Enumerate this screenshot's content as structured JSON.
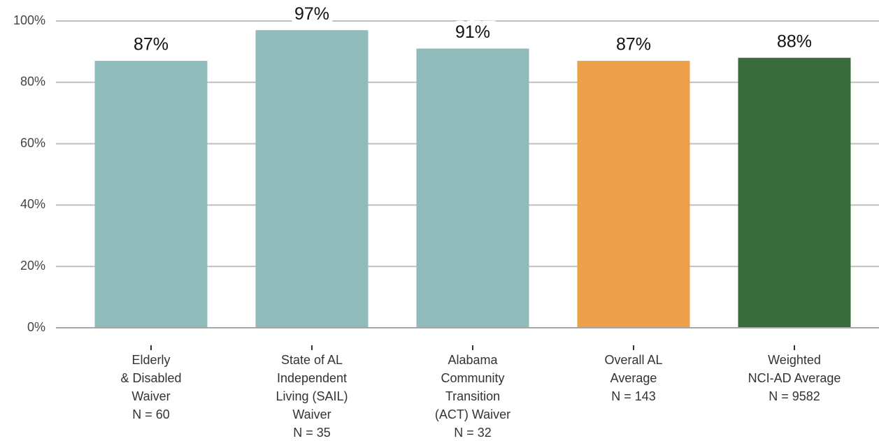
{
  "chart_data": {
    "type": "bar",
    "categories": [
      [
        "Elderly",
        "& Disabled",
        "Waiver",
        "N = 60"
      ],
      [
        "State of AL",
        "Independent",
        "Living (SAIL)",
        "Waiver",
        "N = 35"
      ],
      [
        "Alabama",
        "Community",
        "Transition",
        "(ACT) Waiver",
        "N = 32"
      ],
      [
        "Overall AL",
        "Average",
        "N = 143"
      ],
      [
        "Weighted",
        "NCI-AD Average",
        "N = 9582"
      ]
    ],
    "values": [
      87,
      97,
      91,
      87,
      88
    ],
    "value_labels": [
      "87%",
      "97%",
      "91%",
      "87%",
      "88%"
    ],
    "colors": [
      "#8fbcbb",
      "#8fbcbb",
      "#8fbcbb",
      "#eca04a",
      "#386b39"
    ],
    "ylim": [
      0,
      100
    ],
    "yticks": [
      {
        "value": 0,
        "label": "0%"
      },
      {
        "value": 20,
        "label": "20%"
      },
      {
        "value": 40,
        "label": "40%"
      },
      {
        "value": 60,
        "label": "60%"
      },
      {
        "value": 80,
        "label": "80%"
      },
      {
        "value": 100,
        "label": "100%"
      }
    ],
    "grid": true
  }
}
